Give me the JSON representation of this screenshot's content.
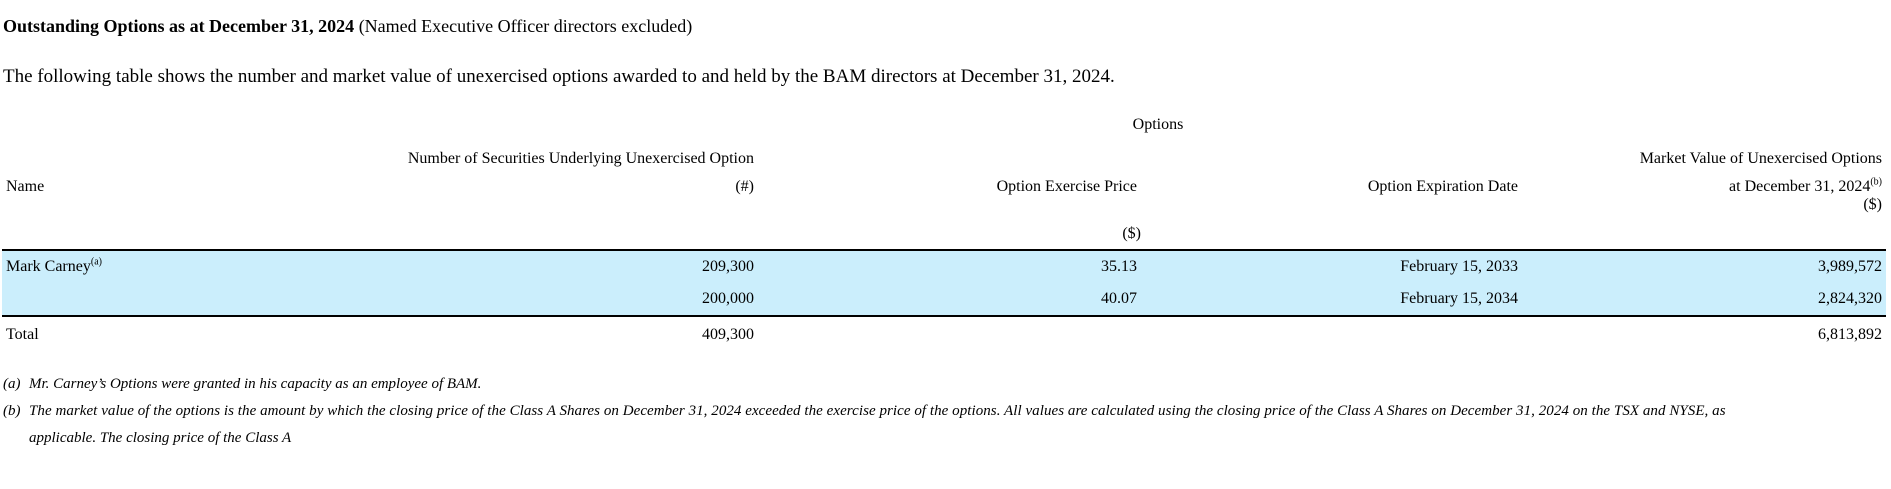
{
  "heading": {
    "bold": "Outstanding Options as at December 31, 2024",
    "normal": "(Named Executive Officer directors excluded)"
  },
  "intro": "The following table shows the number and market value of unexercised options awarded to and held by the BAM directors at December 31, 2024.",
  "table": {
    "group_header": "Options",
    "col_name": "Name",
    "col_securities_line1": "Number of Securities Underlying Unexercised Option",
    "col_securities_line2": "(#)",
    "col_price": "Option Exercise Price",
    "col_price_unit": "($)",
    "col_expiry": "Option Expiration Date",
    "col_value_line1": "Market Value of Unexercised Options",
    "col_value_line2": "at December 31, 2024",
    "col_value_sup": "(b)",
    "col_value_unit": "($)",
    "rows": [
      {
        "name": "Mark Carney",
        "name_sup": "(a)",
        "securities": "209,300",
        "price": "35.13",
        "expiry": "February 15, 2033",
        "value": "3,989,572"
      },
      {
        "name": "",
        "name_sup": "",
        "securities": "200,000",
        "price": "40.07",
        "expiry": "February 15, 2034",
        "value": "2,824,320"
      }
    ],
    "total": {
      "label": "Total",
      "securities": "409,300",
      "value": "6,813,892"
    }
  },
  "footnotes": {
    "a_marker": "(a)",
    "a_text": "Mr. Carney’s Options were granted in his capacity as an employee of BAM.",
    "b_marker": "(b)",
    "b_text_line1": "The market value of the options is the amount by which the closing price of the Class A Shares on December 31, 2024 exceeded the exercise price of the options. All values are calculated using the closing price of the Class A Shares on December 31, 2024 on the TSX and NYSE, as",
    "b_text_line2": "applicable. The closing price of the Class A"
  },
  "colors": {
    "highlight_row": "#cbeefc",
    "rule": "#000000"
  }
}
